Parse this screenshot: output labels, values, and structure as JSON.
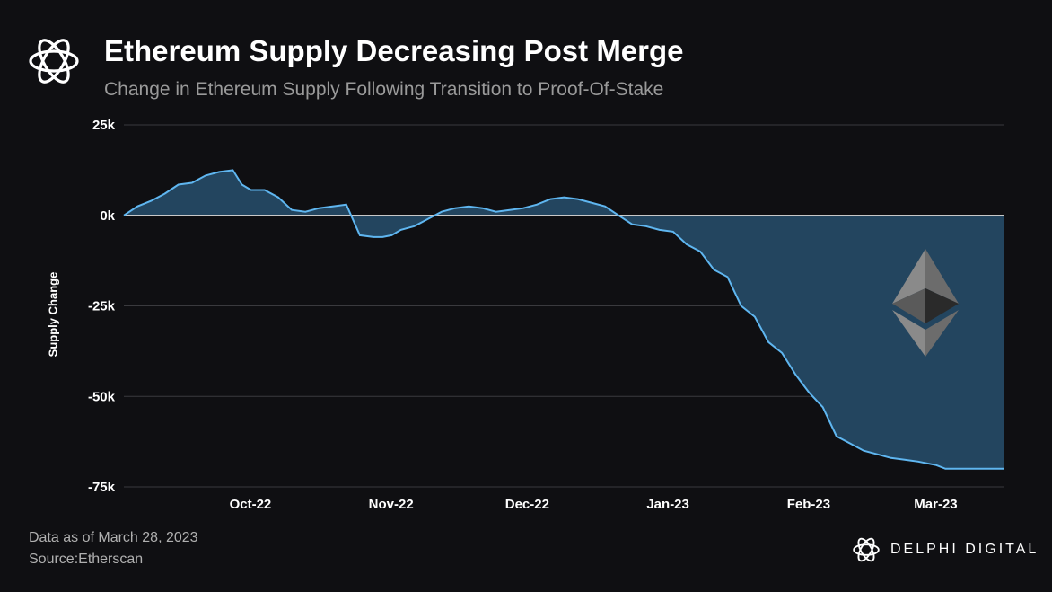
{
  "header": {
    "title": "Ethereum Supply Decreasing Post Merge",
    "subtitle": "Change in Ethereum Supply Following Transition to Proof-Of-Stake",
    "logo_icon": "delphi-flower-icon"
  },
  "footer": {
    "data_note": "Data as of March 28, 2023",
    "source": "Source:Etherscan",
    "brand": "DELPHI DIGITAL",
    "brand_icon": "delphi-flower-icon"
  },
  "colors": {
    "background": "#0f0f12",
    "line": "#5fb6f0",
    "area": "#23455f",
    "zero_line": "#c8c8c8",
    "grid": "#3a3a3e"
  },
  "chart_data": {
    "type": "area",
    "ylabel": "Supply Change",
    "xlabel": "",
    "ylim": [
      -75000,
      25000
    ],
    "yticks": [
      25000,
      0,
      -25000,
      -50000,
      -75000
    ],
    "ytick_labels": [
      "25k",
      "0k",
      "-25k",
      "-50k",
      "-75k"
    ],
    "x_tick_labels": [
      "Oct-22",
      "Nov-22",
      "Dec-22",
      "Jan-23",
      "Feb-23",
      "Mar-23"
    ],
    "x_tick_dates": [
      "2022-10-01",
      "2022-11-01",
      "2022-12-01",
      "2023-01-01",
      "2023-02-01",
      "2023-03-01"
    ],
    "xlim": [
      "2022-09-15",
      "2023-03-28"
    ],
    "grid": true,
    "legend": "none",
    "decoration_icon": "ethereum-logo-icon",
    "series": [
      {
        "x": [
          "2022-09-15",
          "2022-09-18",
          "2022-09-21",
          "2022-09-24",
          "2022-09-27",
          "2022-09-30",
          "2022-10-03",
          "2022-10-06",
          "2022-10-09",
          "2022-10-11",
          "2022-10-13",
          "2022-10-16",
          "2022-10-19",
          "2022-10-22",
          "2022-10-25",
          "2022-10-28",
          "2022-10-31",
          "2022-11-03",
          "2022-11-06",
          "2022-11-09",
          "2022-11-11",
          "2022-11-13",
          "2022-11-15",
          "2022-11-18",
          "2022-11-21",
          "2022-11-24",
          "2022-11-27",
          "2022-11-30",
          "2022-12-03",
          "2022-12-06",
          "2022-12-09",
          "2022-12-12",
          "2022-12-15",
          "2022-12-18",
          "2022-12-21",
          "2022-12-24",
          "2022-12-27",
          "2022-12-30",
          "2023-01-02",
          "2023-01-05",
          "2023-01-08",
          "2023-01-11",
          "2023-01-14",
          "2023-01-17",
          "2023-01-20",
          "2023-01-23",
          "2023-01-26",
          "2023-01-29",
          "2023-02-01",
          "2023-02-04",
          "2023-02-07",
          "2023-02-10",
          "2023-02-13",
          "2023-02-16",
          "2023-02-19",
          "2023-02-22",
          "2023-02-25",
          "2023-02-28",
          "2023-03-03",
          "2023-03-06",
          "2023-03-09",
          "2023-03-11",
          "2023-03-13",
          "2023-03-15",
          "2023-03-18",
          "2023-03-21",
          "2023-03-24",
          "2023-03-28"
        ],
        "values": [
          0,
          2500,
          4000,
          6000,
          8500,
          9000,
          11000,
          12000,
          12500,
          8500,
          7000,
          7000,
          5000,
          1500,
          1000,
          2000,
          2500,
          3000,
          -5500,
          -6000,
          -6000,
          -5500,
          -4000,
          -3000,
          -1000,
          1000,
          2000,
          2500,
          2000,
          1000,
          1500,
          2000,
          3000,
          4500,
          5000,
          4500,
          3500,
          2500,
          0,
          -2500,
          -3000,
          -4000,
          -4500,
          -8000,
          -10000,
          -15000,
          -17000,
          -25000,
          -28000,
          -35000,
          -38000,
          -44000,
          -49000,
          -53000,
          -61000,
          -63000,
          -65000,
          -66000,
          -67000,
          -67500,
          -68000,
          -68500,
          -69000,
          -70000,
          -70000,
          -70000,
          -70000,
          -70000
        ]
      }
    ]
  }
}
